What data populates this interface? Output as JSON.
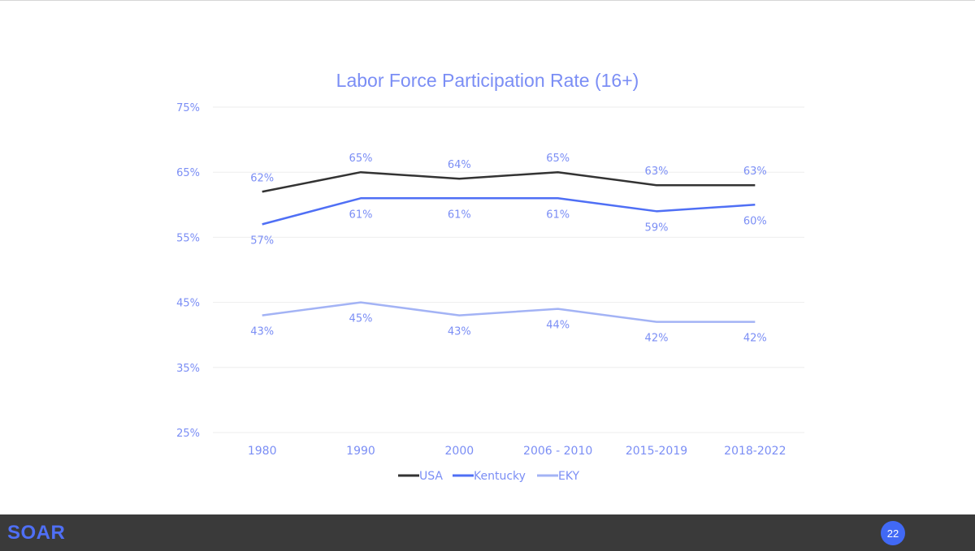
{
  "chart_data": {
    "type": "line",
    "title": "Labor Force Participation Rate (16+)",
    "xlabel": "",
    "ylabel": "",
    "categories": [
      "1980",
      "1990",
      "2000",
      "2006 - 2010",
      "2015-2019",
      "2018-2022"
    ],
    "ylim": [
      25,
      75
    ],
    "yticks": [
      25,
      35,
      45,
      55,
      65,
      75
    ],
    "ytick_labels": [
      "25%",
      "35%",
      "45%",
      "55%",
      "65%",
      "75%"
    ],
    "grid": true,
    "legend_position": "bottom",
    "series": [
      {
        "name": "USA",
        "color": "#333333",
        "values": [
          62,
          65,
          64,
          65,
          63,
          63
        ],
        "labels": [
          "62%",
          "65%",
          "64%",
          "65%",
          "63%",
          "63%"
        ],
        "label_position": "above"
      },
      {
        "name": "Kentucky",
        "color": "#4f6ff5",
        "values": [
          57,
          61,
          61,
          61,
          59,
          60
        ],
        "labels": [
          "57%",
          "61%",
          "61%",
          "61%",
          "59%",
          "60%"
        ],
        "label_position": "below"
      },
      {
        "name": "EKY",
        "color": "#a3b3f5",
        "values": [
          43,
          45,
          43,
          44,
          42,
          42
        ],
        "labels": [
          "43%",
          "45%",
          "43%",
          "44%",
          "42%",
          "42%"
        ],
        "label_position": "below"
      }
    ]
  },
  "footer": {
    "logo_text": "SOAR",
    "page_number": "22"
  },
  "colors": {
    "text_accent": "#7b8ef5",
    "grid": "#eeeeee",
    "footer_bg": "#3a3a3a",
    "logo": "#4f6ff5",
    "badge": "#4169f5"
  }
}
